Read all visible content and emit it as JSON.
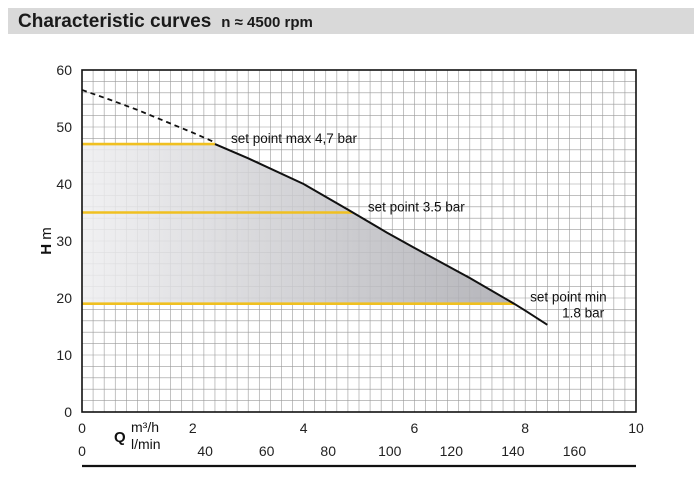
{
  "header": {
    "title": "Characteristic curves",
    "subtitle": "n ≈ 4500 rpm"
  },
  "chart_data": {
    "type": "line",
    "title": "Characteristic curves",
    "subtitle": "n ≈ 4500 rpm",
    "ylabel_symbol": "H",
    "ylabel_unit": "m",
    "xlabel_symbol": "Q",
    "x_unit_primary": "m³/h",
    "x_unit_secondary": "l/min",
    "ylim": [
      0,
      60
    ],
    "xlim": [
      0,
      10
    ],
    "x2lim": [
      0,
      180
    ],
    "y_ticks": [
      0,
      10,
      20,
      30,
      40,
      50,
      60
    ],
    "x_ticks": [
      0,
      2,
      4,
      6,
      8,
      10
    ],
    "x2_ticks": [
      0,
      40,
      60,
      80,
      100,
      120,
      140,
      160
    ],
    "grid": true,
    "series": [
      {
        "style": "dashed",
        "x": [
          0,
          0.5,
          1.0,
          1.5,
          2.0,
          2.4
        ],
        "y": [
          56.5,
          54.8,
          53.0,
          51.0,
          49.0,
          47.3
        ]
      },
      {
        "style": "solid",
        "x": [
          2.4,
          3.0,
          4.0,
          4.8,
          5.5,
          6.0,
          7.0,
          7.8,
          8.0,
          8.4
        ],
        "y": [
          47.0,
          44.5,
          40.0,
          35.5,
          31.5,
          28.8,
          23.5,
          19.0,
          17.8,
          15.3
        ]
      }
    ],
    "set_points": [
      {
        "label": "set point max 4,7 bar",
        "h": 47,
        "q": 2.4
      },
      {
        "label": "set point 3.5 bar",
        "h": 35,
        "q": 4.8
      },
      {
        "label": "set point min",
        "label2": "1.8 bar",
        "h": 19,
        "q": 7.8
      }
    ],
    "colors": {
      "setpoint_line": "#f0c020",
      "shaded_area": "#bdbdc2",
      "curve": "#111111",
      "grid": "#9a9a9a",
      "header_bg": "#d9d9d9"
    }
  }
}
